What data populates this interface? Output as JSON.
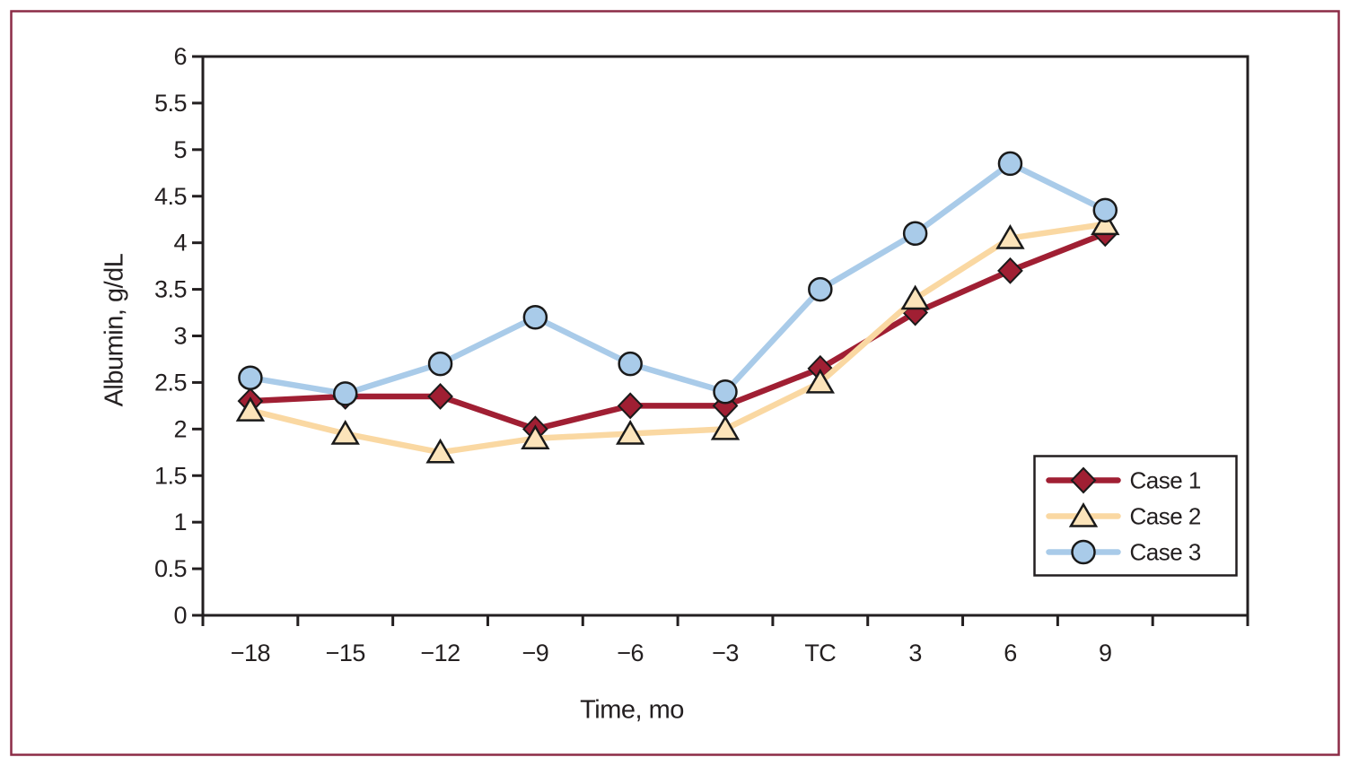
{
  "figure": {
    "background": "#ffffff",
    "border_color": "#8c2b46",
    "axis_color": "#231f20",
    "text_color": "#231f20"
  },
  "chart_data": {
    "type": "line",
    "title": "",
    "xlabel": "Time, mo",
    "ylabel": "Albumin, g/dL",
    "categories": [
      "−18",
      "−15",
      "−12",
      "−9",
      "−6",
      "−3",
      "TC",
      "3",
      "6",
      "9"
    ],
    "ylim": [
      0,
      6
    ],
    "ytick_step": 0.5,
    "ytick_labels": [
      "0",
      "0.5",
      "1",
      "1.5",
      "2",
      "2.5",
      "3",
      "3.5",
      "4",
      "4.5",
      "5",
      "5.5",
      "6"
    ],
    "grid": false,
    "legend_position": "inside-bottom-right",
    "series": [
      {
        "name": "Case 1",
        "marker": "diamond",
        "line_color": "#a01f33",
        "marker_fill": "#a01f33",
        "marker_stroke": "#1a1a1a",
        "values": [
          2.3,
          2.35,
          2.35,
          2.0,
          2.25,
          2.25,
          2.65,
          3.25,
          3.7,
          4.1
        ]
      },
      {
        "name": "Case 2",
        "marker": "triangle",
        "line_color": "#fad8a2",
        "marker_fill": "#fce4ba",
        "marker_stroke": "#1a1a1a",
        "values": [
          2.2,
          1.95,
          1.75,
          1.9,
          1.95,
          2.0,
          2.5,
          3.4,
          4.05,
          4.2
        ]
      },
      {
        "name": "Case 3",
        "marker": "circle",
        "line_color": "#a9cbe9",
        "marker_fill": "#a9cbe9",
        "marker_stroke": "#1a1a1a",
        "values": [
          2.55,
          2.38,
          2.7,
          3.2,
          2.7,
          2.4,
          3.5,
          4.1,
          4.85,
          4.35
        ]
      }
    ]
  }
}
